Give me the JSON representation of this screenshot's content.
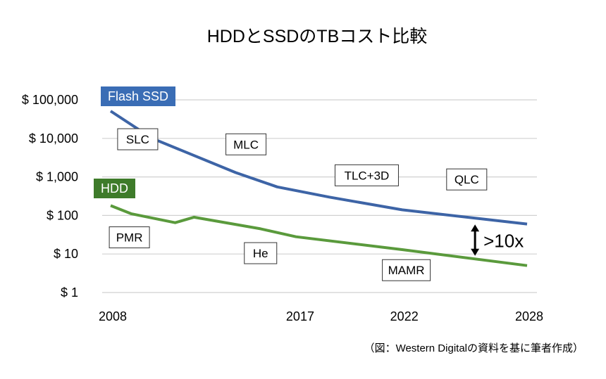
{
  "chart_data": {
    "type": "line",
    "title": "HDDとSSDのTBコスト比較",
    "xlabel": "",
    "ylabel": "",
    "yscale": "log",
    "ylim": [
      1,
      100000
    ],
    "xlim": [
      2008,
      2028
    ],
    "grid": true,
    "y_ticks": [
      {
        "value": 100000,
        "label": "$ 100,000"
      },
      {
        "value": 10000,
        "label": "$ 10,000"
      },
      {
        "value": 1000,
        "label": "$ 1,000"
      },
      {
        "value": 100,
        "label": "$ 100"
      },
      {
        "value": 10,
        "label": "$ 10"
      },
      {
        "value": 1,
        "label": "$ 1"
      }
    ],
    "x_ticks": [
      {
        "value": 2008,
        "label": "2008"
      },
      {
        "value": 2017,
        "label": "2017"
      },
      {
        "value": 2022,
        "label": "2022"
      },
      {
        "value": 2028,
        "label": "2028"
      }
    ],
    "series": [
      {
        "name": "Flash SSD",
        "color": "#3d64a6",
        "label_bg": "#3a6db5",
        "x": [
          2008,
          2010,
          2014,
          2016,
          2018.5,
          2022,
          2028
        ],
        "values": [
          51000,
          10000,
          1300,
          550,
          300,
          140,
          60
        ]
      },
      {
        "name": "HDD",
        "color": "#5a9a3c",
        "label_bg": "#3e7b2a",
        "x": [
          2008,
          2009,
          2011.1,
          2012,
          2015.2,
          2016.9,
          2022,
          2028
        ],
        "values": [
          180,
          110,
          65,
          90,
          45,
          28,
          13,
          5
        ]
      }
    ],
    "annotations": [
      {
        "text": "SLC",
        "x": 2009.3,
        "value": 9500
      },
      {
        "text": "MLC",
        "x": 2014.5,
        "value": 7000
      },
      {
        "text": "TLC+3D",
        "x": 2020.3,
        "value": 1100
      },
      {
        "text": "QLC",
        "x": 2025.1,
        "value": 860
      },
      {
        "text": "PMR",
        "x": 2008.9,
        "value": 27
      },
      {
        "text": "He",
        "x": 2015.2,
        "value": 10.5
      },
      {
        "text": "MAMR",
        "x": 2022.2,
        "value": 3.8
      }
    ],
    "gap_annotation": {
      "text": ">10x",
      "x": 2025.5,
      "from": 75,
      "to": 7
    }
  },
  "source_note": "（図：Western Digitalの資料を基に筆者作成）"
}
